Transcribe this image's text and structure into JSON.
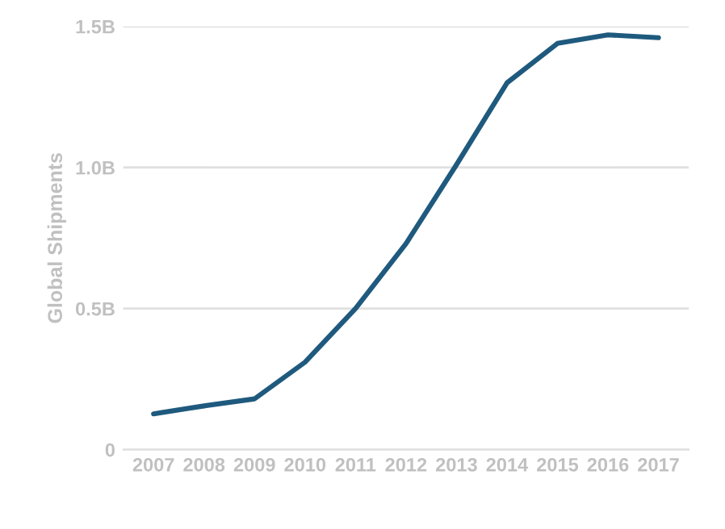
{
  "chart_data": {
    "type": "line",
    "ylabel": "Global Shipments",
    "categories": [
      "2007",
      "2008",
      "2009",
      "2010",
      "2011",
      "2012",
      "2013",
      "2014",
      "2015",
      "2016",
      "2017"
    ],
    "series": [
      {
        "color": "#1f5a7e",
        "values": [
          0.127,
          0.155,
          0.18,
          0.31,
          0.5,
          0.73,
          1.01,
          1.3,
          1.44,
          1.47,
          1.46
        ]
      }
    ],
    "ylim": [
      0,
      1.5
    ],
    "yticks": [
      0,
      {
        "value": 0.5,
        "label": "0.5B"
      },
      {
        "value": 1.0,
        "label": "1.0B"
      },
      {
        "value": 1.5,
        "label": "1.5B"
      }
    ],
    "grid": "y",
    "line_style": "solid",
    "marker": "none"
  }
}
